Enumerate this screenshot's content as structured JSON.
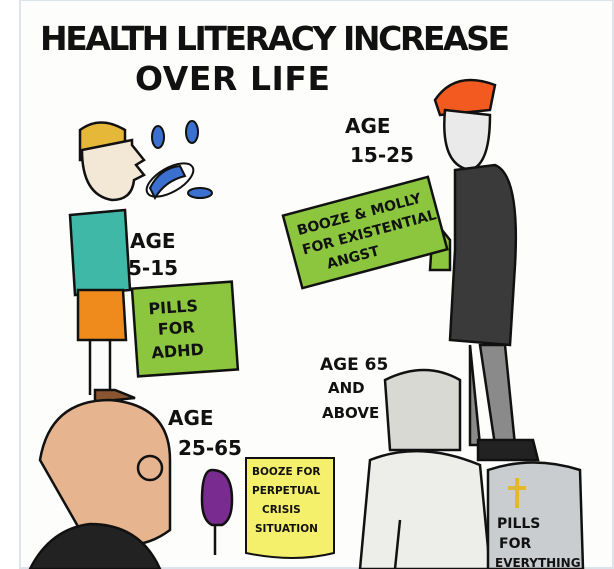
{
  "title": {
    "lines": [
      "HEALTH LITERACY INCREASE",
      "OVER LIFE"
    ]
  },
  "panels": [
    {
      "age": [
        "AGE",
        "5-15"
      ],
      "sign": [
        "PILLS",
        "FOR",
        "ADHD"
      ]
    },
    {
      "age": [
        "AGE",
        "15-25"
      ],
      "sign": [
        "BOOZE & MOLLY",
        "FOR EXISTENTIAL",
        "ANGST"
      ]
    },
    {
      "age": [
        "AGE",
        "25-65"
      ],
      "sign": [
        "BOOZE FOR",
        "PERPETUAL",
        "CRISIS",
        "SITUATION"
      ]
    },
    {
      "age": [
        "AGE 65",
        "AND",
        "ABOVE"
      ],
      "sign": [
        "PILLS",
        "FOR",
        "EVERYTHING"
      ]
    }
  ]
}
